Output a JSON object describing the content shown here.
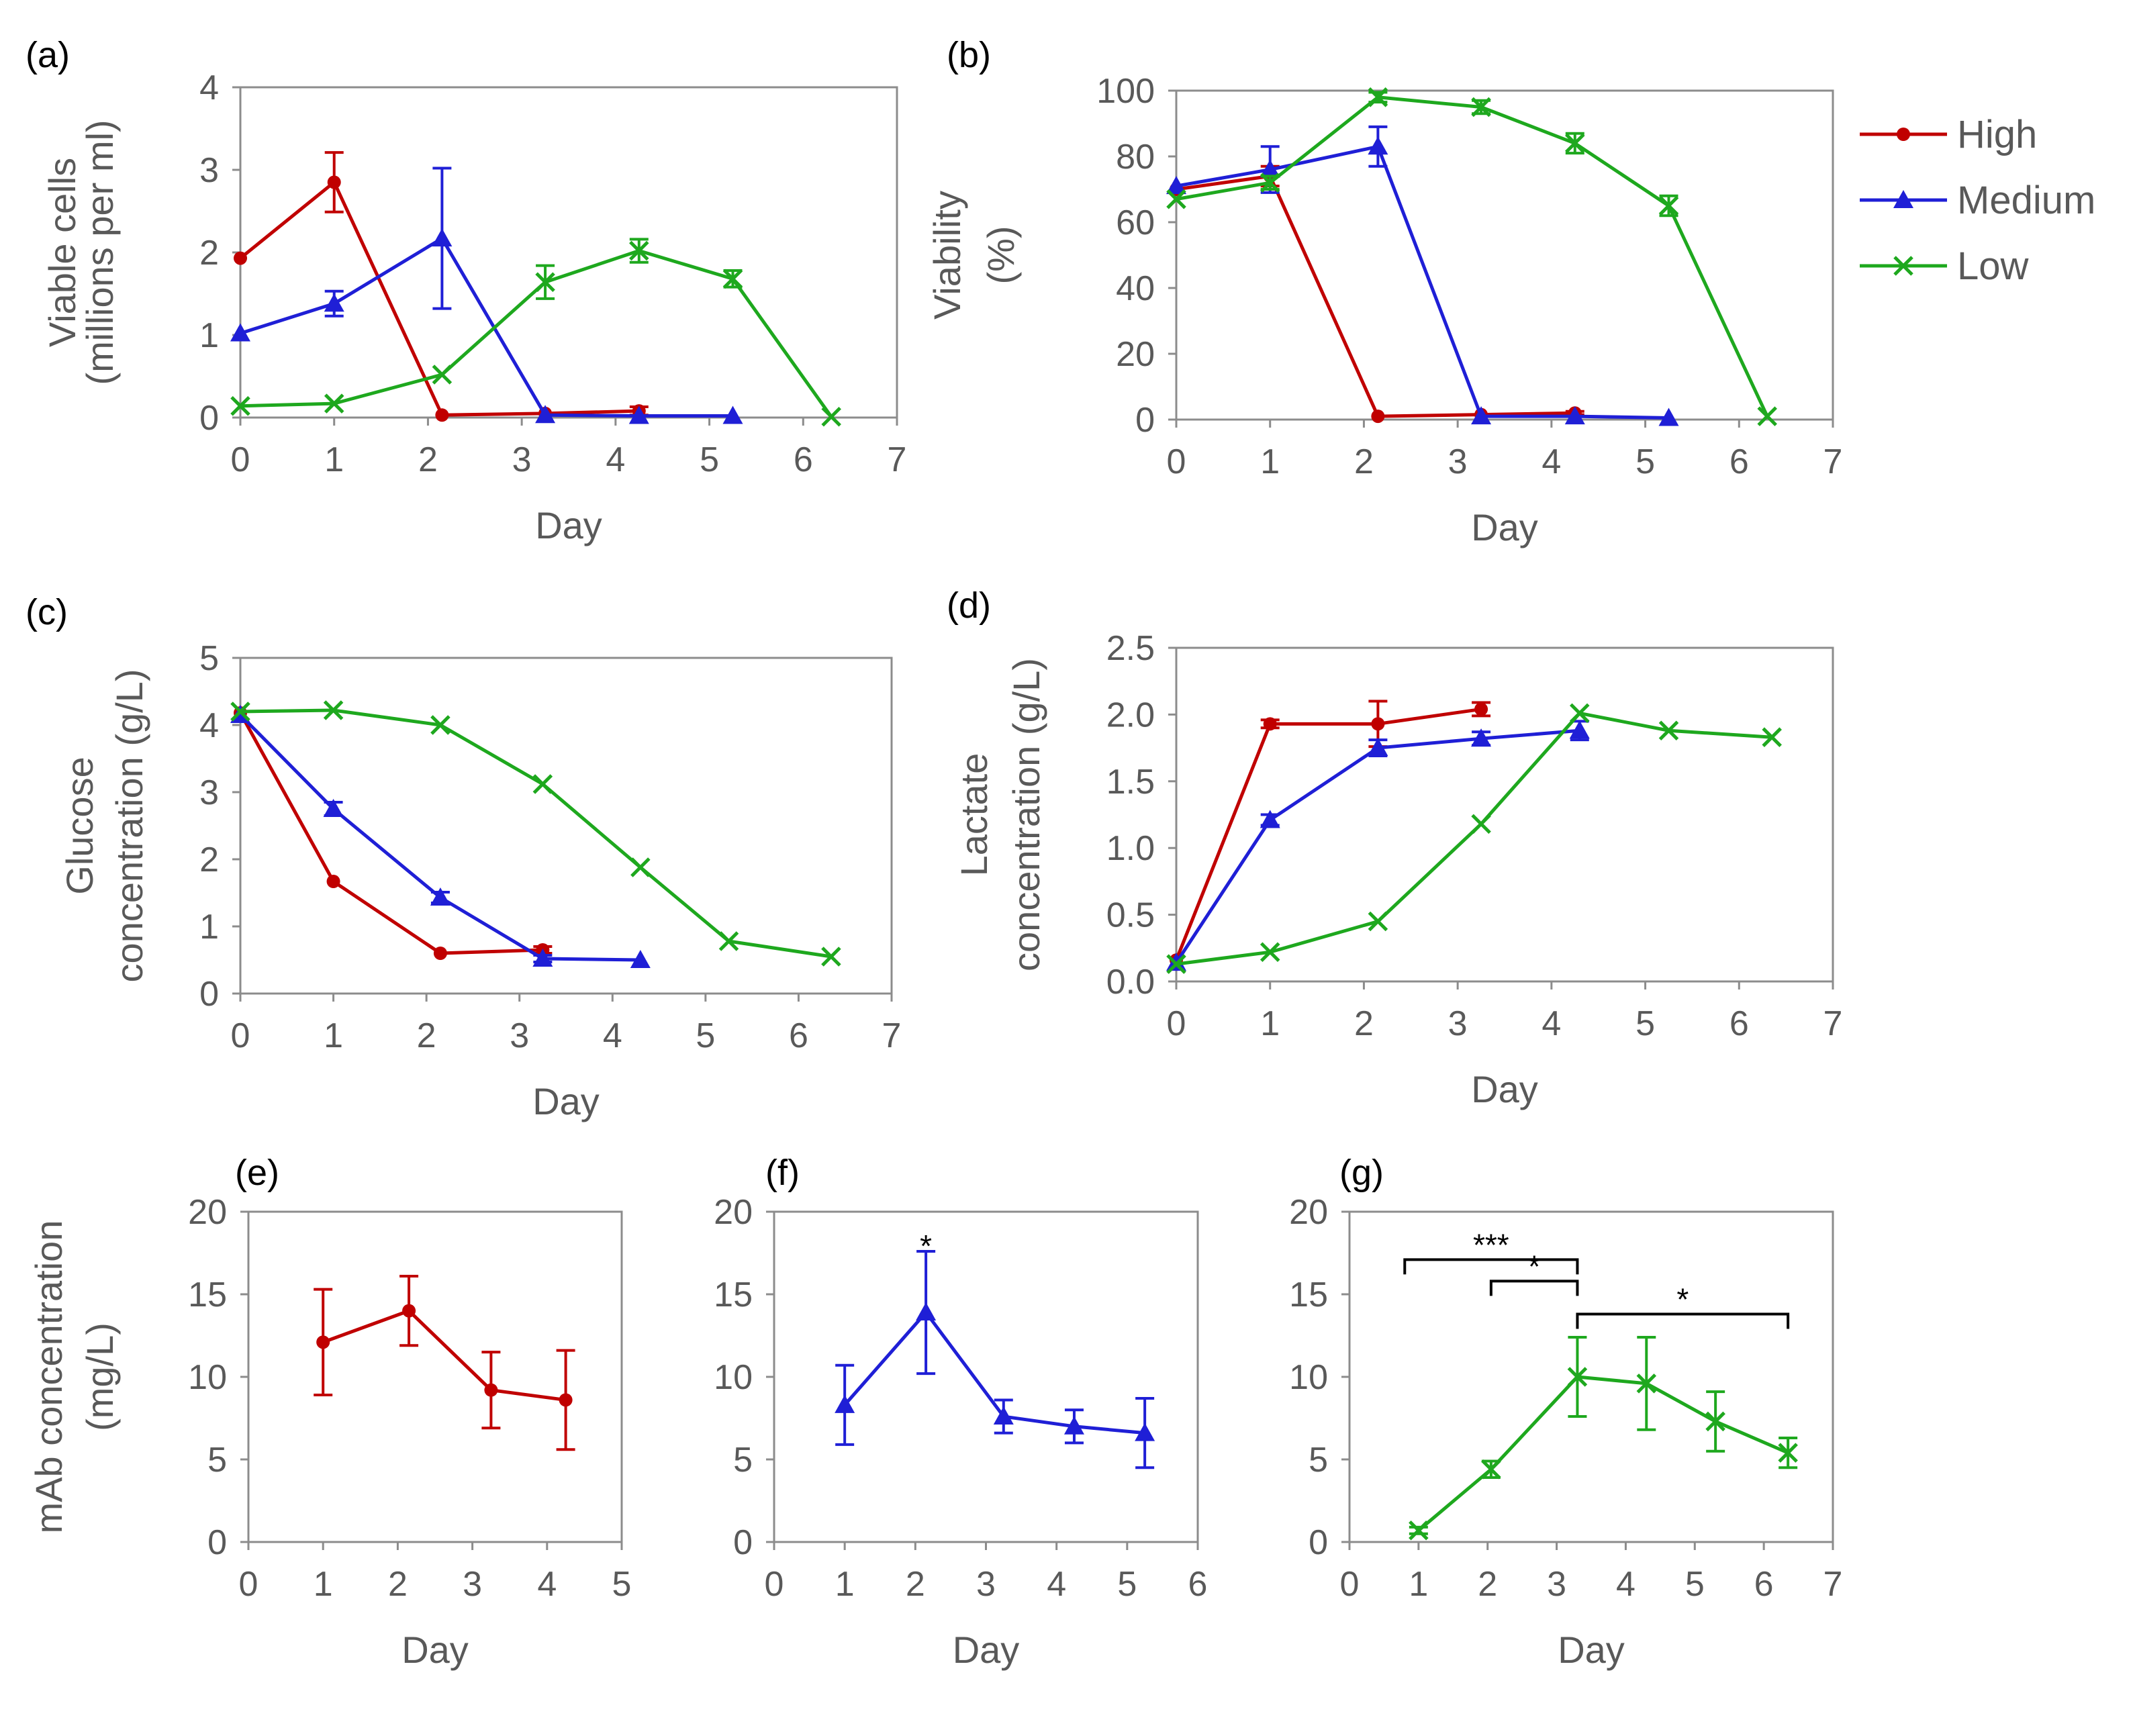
{
  "colors": {
    "High": "#c00000",
    "Medium": "#1f1fd6",
    "Low": "#1ea81e",
    "frame": "#8c8c8c",
    "text": "#595959"
  },
  "legend": [
    {
      "name": "High",
      "marker": "circle"
    },
    {
      "name": "Medium",
      "marker": "triangle"
    },
    {
      "name": "Low",
      "marker": "x"
    }
  ],
  "chart_data": [
    {
      "id": "a",
      "panel_label": "(a)",
      "type": "line",
      "xlabel": "Day",
      "ylabel": [
        "Viable cells",
        "(millions per ml)"
      ],
      "xlim": [
        0,
        7
      ],
      "ylim": [
        0,
        4
      ],
      "xticks": [
        0,
        1,
        2,
        3,
        4,
        5,
        6,
        7
      ],
      "yticks": [
        0,
        1,
        2,
        3,
        4
      ],
      "ytick_labels": [
        "0",
        "1",
        "2",
        "3",
        "4"
      ],
      "series": [
        {
          "name": "High",
          "x": [
            0,
            1,
            2.15,
            3.25,
            4.25
          ],
          "y": [
            1.93,
            2.85,
            0.03,
            0.05,
            0.08
          ],
          "err": [
            0,
            0.36,
            0,
            0,
            0.05
          ]
        },
        {
          "name": "Medium",
          "x": [
            0,
            1,
            2.15,
            3.25,
            4.25,
            5.25
          ],
          "y": [
            1.02,
            1.38,
            2.17,
            0.03,
            0.02,
            0.02
          ],
          "err": [
            0,
            0.15,
            0.85,
            0,
            0,
            0
          ]
        },
        {
          "name": "Low",
          "x": [
            0,
            1,
            2.15,
            3.25,
            4.25,
            5.25,
            6.3
          ],
          "y": [
            0.14,
            0.17,
            0.52,
            1.64,
            2.02,
            1.68,
            0.01
          ],
          "err": [
            0,
            0,
            0,
            0.2,
            0.14,
            0.1,
            0
          ]
        }
      ]
    },
    {
      "id": "b",
      "panel_label": "(b)",
      "type": "line",
      "xlabel": "Day",
      "ylabel": [
        "Viability",
        "(%)"
      ],
      "xlim": [
        0,
        7
      ],
      "ylim": [
        0,
        100
      ],
      "xticks": [
        0,
        1,
        2,
        3,
        4,
        5,
        6,
        7
      ],
      "yticks": [
        0,
        20,
        40,
        60,
        80,
        100
      ],
      "ytick_labels": [
        "0",
        "20",
        "40",
        "60",
        "80",
        "100"
      ],
      "series": [
        {
          "name": "High",
          "x": [
            0,
            1,
            2.15,
            3.25,
            4.25
          ],
          "y": [
            70,
            74,
            1,
            1.5,
            2
          ],
          "err": [
            0,
            3,
            0,
            0,
            0.5
          ]
        },
        {
          "name": "Medium",
          "x": [
            0,
            1,
            2.15,
            3.25,
            4.25,
            5.25
          ],
          "y": [
            71,
            76,
            83,
            1,
            1,
            0.5
          ],
          "err": [
            0,
            7,
            6,
            0,
            0,
            0
          ]
        },
        {
          "name": "Low",
          "x": [
            0,
            1,
            2.15,
            3.25,
            4.25,
            5.25,
            6.3
          ],
          "y": [
            67,
            72,
            98,
            95,
            84,
            65,
            1
          ],
          "err": [
            0,
            2,
            1.5,
            2,
            3,
            3,
            0
          ]
        }
      ]
    },
    {
      "id": "c",
      "panel_label": "(c)",
      "type": "line",
      "xlabel": "Day",
      "ylabel": [
        "Glucose",
        "concentration (g/L)"
      ],
      "xlim": [
        0,
        7
      ],
      "ylim": [
        0,
        5
      ],
      "xticks": [
        0,
        1,
        2,
        3,
        4,
        5,
        6,
        7
      ],
      "yticks": [
        0,
        1,
        2,
        3,
        4,
        5
      ],
      "ytick_labels": [
        "0",
        "1",
        "2",
        "3",
        "4",
        "5"
      ],
      "series": [
        {
          "name": "High",
          "x": [
            0,
            1,
            2.15,
            3.25
          ],
          "y": [
            4.18,
            1.67,
            0.6,
            0.65
          ],
          "err": [
            0,
            0,
            0,
            0.05
          ]
        },
        {
          "name": "Medium",
          "x": [
            0,
            1,
            2.15,
            3.25,
            4.3
          ],
          "y": [
            4.15,
            2.75,
            1.43,
            0.52,
            0.5
          ],
          "err": [
            0,
            0.1,
            0.08,
            0.05,
            0
          ]
        },
        {
          "name": "Low",
          "x": [
            0,
            1,
            2.15,
            3.25,
            4.3,
            5.25,
            6.35
          ],
          "y": [
            4.2,
            4.22,
            4.0,
            3.12,
            1.88,
            0.78,
            0.55
          ],
          "err": [
            0,
            0,
            0,
            0,
            0,
            0,
            0
          ]
        }
      ]
    },
    {
      "id": "d",
      "panel_label": "(d)",
      "type": "line",
      "xlabel": "Day",
      "ylabel": [
        "Lactate",
        "concentration (g/L)"
      ],
      "xlim": [
        0,
        7
      ],
      "ylim": [
        0,
        2.5
      ],
      "xticks": [
        0,
        1,
        2,
        3,
        4,
        5,
        6,
        7
      ],
      "yticks": [
        0,
        0.5,
        1,
        1.5,
        2,
        2.5
      ],
      "ytick_labels": [
        "0.0",
        "0.5",
        "1.0",
        "1.5",
        "2.0",
        "2.5"
      ],
      "series": [
        {
          "name": "High",
          "x": [
            0,
            1,
            2.15,
            3.25
          ],
          "y": [
            0.16,
            1.93,
            1.93,
            2.04
          ],
          "err": [
            0,
            0.03,
            0.17,
            0.05
          ]
        },
        {
          "name": "Medium",
          "x": [
            0,
            1,
            2.15,
            3.25,
            4.3
          ],
          "y": [
            0.14,
            1.21,
            1.75,
            1.82,
            1.88
          ],
          "err": [
            0,
            0.04,
            0.06,
            0.05,
            0.07
          ]
        },
        {
          "name": "Low",
          "x": [
            0,
            1,
            2.15,
            3.25,
            4.3,
            5.25,
            6.35
          ],
          "y": [
            0.13,
            0.22,
            0.45,
            1.18,
            2.01,
            1.88,
            1.83
          ],
          "err": [
            0,
            0,
            0,
            0,
            0,
            0,
            0
          ]
        }
      ]
    },
    {
      "id": "e",
      "panel_label": "(e)",
      "type": "line",
      "xlabel": "Day",
      "ylabel": [
        "mAb concentration",
        "(mg/L)"
      ],
      "xlim": [
        0,
        5
      ],
      "ylim": [
        0,
        20
      ],
      "xticks": [
        0,
        1,
        2,
        3,
        4,
        5
      ],
      "yticks": [
        0,
        5,
        10,
        15,
        20
      ],
      "ytick_labels": [
        "0",
        "5",
        "10",
        "15",
        "20"
      ],
      "series": [
        {
          "name": "High",
          "x": [
            1,
            2.15,
            3.25,
            4.25
          ],
          "y": [
            12.1,
            14.0,
            9.2,
            8.6
          ],
          "err": [
            3.2,
            2.1,
            2.3,
            3.0
          ]
        }
      ]
    },
    {
      "id": "f",
      "panel_label": "(f)",
      "type": "line",
      "xlabel": "Day",
      "ylabel": [],
      "xlim": [
        0,
        6
      ],
      "ylim": [
        0,
        20
      ],
      "xticks": [
        0,
        1,
        2,
        3,
        4,
        5,
        6
      ],
      "yticks": [
        0,
        5,
        10,
        15,
        20
      ],
      "ytick_labels": [
        "0",
        "5",
        "10",
        "15",
        "20"
      ],
      "series": [
        {
          "name": "Medium",
          "x": [
            1,
            2.15,
            3.25,
            4.25,
            5.25
          ],
          "y": [
            8.3,
            13.9,
            7.6,
            7.0,
            6.6
          ],
          "err": [
            2.4,
            3.7,
            1.0,
            1.0,
            2.1
          ]
        }
      ],
      "annotations": [
        {
          "text": "*",
          "x": 2.15,
          "y": 18.5
        }
      ]
    },
    {
      "id": "g",
      "panel_label": "(g)",
      "type": "line",
      "xlabel": "Day",
      "ylabel": [],
      "xlim": [
        0,
        7
      ],
      "ylim": [
        0,
        20
      ],
      "xticks": [
        0,
        1,
        2,
        3,
        4,
        5,
        6,
        7
      ],
      "yticks": [
        0,
        5,
        10,
        15,
        20
      ],
      "ytick_labels": [
        "0",
        "5",
        "10",
        "15",
        "20"
      ],
      "series": [
        {
          "name": "Low",
          "x": [
            1,
            2.05,
            3.3,
            4.3,
            5.3,
            6.35
          ],
          "y": [
            0.7,
            4.4,
            10.0,
            9.6,
            7.3,
            5.4
          ],
          "err": [
            0.2,
            0.5,
            2.4,
            2.8,
            1.8,
            0.9
          ]
        }
      ],
      "brackets": [
        {
          "label": "***",
          "x1": 0.8,
          "x2": 3.3,
          "y": 17.1
        },
        {
          "label": "*",
          "x1": 2.05,
          "x2": 3.3,
          "y": 15.8
        },
        {
          "label": "*",
          "x1": 3.3,
          "x2": 6.35,
          "y": 13.8
        }
      ]
    }
  ]
}
